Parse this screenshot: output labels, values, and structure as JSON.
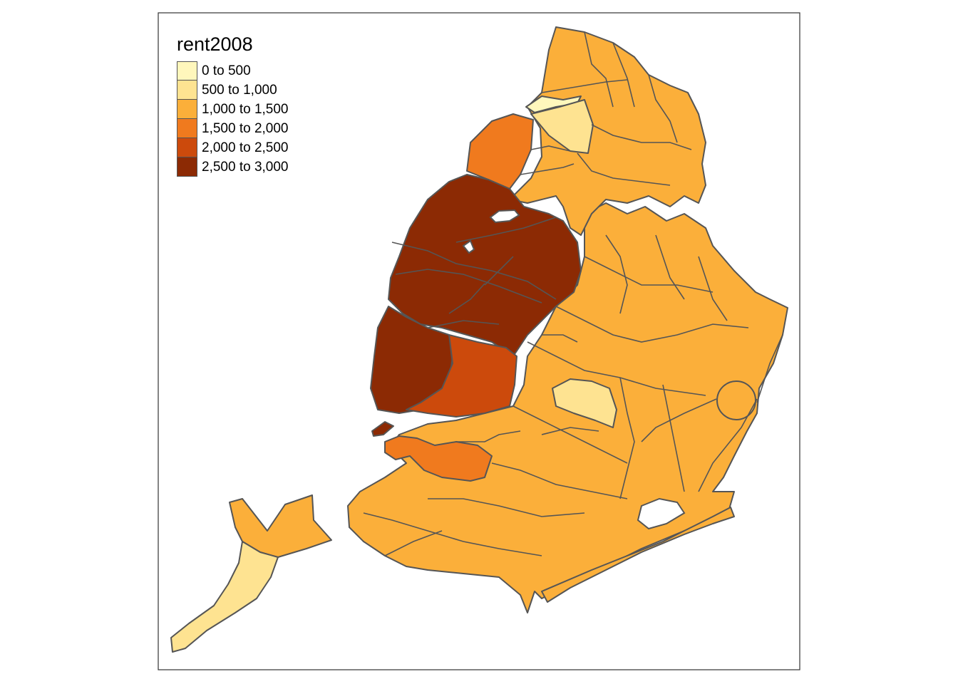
{
  "legend": {
    "title": "rent2008",
    "classes": [
      {
        "label": "0 to 500",
        "color": "#FFF7BC"
      },
      {
        "label": "500 to 1,000",
        "color": "#FEE391"
      },
      {
        "label": "1,000 to 1,500",
        "color": "#FBAF3A"
      },
      {
        "label": "1,500 to 2,000",
        "color": "#F07A1E"
      },
      {
        "label": "2,000 to 2,500",
        "color": "#CC4A0C"
      },
      {
        "label": "2,500 to 3,000",
        "color": "#8C2A04"
      }
    ]
  },
  "border_color": "#555555"
}
